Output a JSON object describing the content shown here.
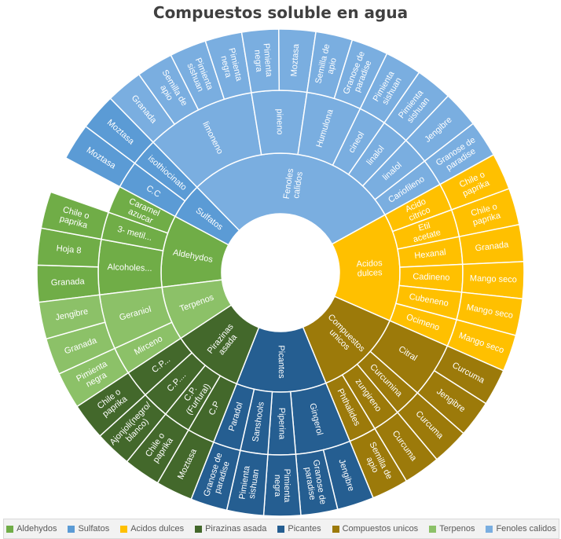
{
  "chart_data": {
    "type": "sunburst",
    "title": "Compuestos soluble en agua",
    "groups": [
      {
        "name": "Aldehydos",
        "color": "#70ad47",
        "children": [
          {
            "name": "Alcoholes...",
            "children": [
              {
                "name": "Granada"
              },
              {
                "name": "Hoja 8"
              }
            ]
          },
          {
            "name": "3- metil...",
            "children": [
              {
                "name": "Chile o paprika"
              }
            ]
          },
          {
            "name": "Caramel azucar",
            "children": []
          }
        ]
      },
      {
        "name": "Sulfatos",
        "color": "#5b9bd5",
        "children": [
          {
            "name": "C.C",
            "children": [
              {
                "name": "Moztasa"
              }
            ]
          },
          {
            "name": "isothiocinato",
            "children": [
              {
                "name": "Moztasa"
              }
            ]
          }
        ]
      },
      {
        "name": "Fenoles calidos",
        "color": "#7aaee0",
        "children": [
          {
            "name": "limoneno",
            "children": [
              {
                "name": "Granada"
              },
              {
                "name": "Semilla de apio"
              },
              {
                "name": "Pimienta sishuan"
              },
              {
                "name": "Pimienta negra"
              }
            ]
          },
          {
            "name": "pineno",
            "children": [
              {
                "name": "Pimienta negra"
              },
              {
                "name": "Moztasa"
              }
            ]
          },
          {
            "name": "Humulona",
            "children": [
              {
                "name": "Semilla de apio"
              },
              {
                "name": "Granose de paradise"
              }
            ]
          },
          {
            "name": "cineol",
            "children": [
              {
                "name": "Pimienta sishuan"
              }
            ]
          },
          {
            "name": "linalol",
            "children": [
              {
                "name": "Pimienta sishuan"
              }
            ]
          },
          {
            "name": "linalol",
            "children": [
              {
                "name": "Jengibre"
              }
            ]
          },
          {
            "name": "Cariofileno",
            "children": [
              {
                "name": "Granose de paradise"
              }
            ]
          }
        ]
      },
      {
        "name": "Acidos dulces",
        "color": "#ffc000",
        "children": [
          {
            "name": "Acido citrico",
            "children": [
              {
                "name": "Chile o paprika"
              }
            ]
          },
          {
            "name": "Etil acetate",
            "children": [
              {
                "name": "Chile o paprika"
              }
            ]
          },
          {
            "name": "Hexanal",
            "children": [
              {
                "name": "Granada"
              }
            ]
          },
          {
            "name": "Cadineno",
            "children": [
              {
                "name": "Mango seco"
              }
            ]
          },
          {
            "name": "Cubeneno",
            "children": [
              {
                "name": "Mango seco"
              }
            ]
          },
          {
            "name": "Ocimeno",
            "children": [
              {
                "name": "Mango seco"
              }
            ]
          }
        ]
      },
      {
        "name": "Compuestos unicos",
        "color": "#9c7a0a",
        "children": [
          {
            "name": "Citral",
            "children": [
              {
                "name": "Curcuma"
              },
              {
                "name": "Jengibre"
              }
            ]
          },
          {
            "name": "Curcumina",
            "children": [
              {
                "name": "Curcuma"
              }
            ]
          },
          {
            "name": "zungireno",
            "children": [
              {
                "name": "Curcuma"
              }
            ]
          },
          {
            "name": "Phthalides",
            "children": [
              {
                "name": "Semilla de apio"
              }
            ]
          }
        ]
      },
      {
        "name": "Picantes",
        "color": "#255e91",
        "children": [
          {
            "name": "Gingerol",
            "children": [
              {
                "name": "Jengibre"
              },
              {
                "name": "Granose de paradise"
              }
            ]
          },
          {
            "name": "Piperina",
            "children": [
              {
                "name": "Pimienta negra"
              }
            ]
          },
          {
            "name": "Sanshools",
            "children": [
              {
                "name": "Pimienta sishuan"
              }
            ]
          },
          {
            "name": "Paradol",
            "children": [
              {
                "name": "Granose de paradise"
              }
            ]
          }
        ]
      },
      {
        "name": "Pirazinas asada",
        "color": "#43682b",
        "children": [
          {
            "name": "C.P",
            "children": [
              {
                "name": "Moztasa"
              }
            ]
          },
          {
            "name": "C.P. (Furfural)",
            "children": [
              {
                "name": "Chile o paprika"
              }
            ]
          },
          {
            "name": "C.P....",
            "children": [
              {
                "name": "Ajonjoli(negro/ blanco)"
              }
            ]
          },
          {
            "name": "C.P...",
            "children": [
              {
                "name": "Chile o paprika"
              }
            ]
          }
        ]
      },
      {
        "name": "Terpenos",
        "color": "#8cc168",
        "children": [
          {
            "name": "Mirceno",
            "children": [
              {
                "name": "Pimienta negra"
              }
            ]
          },
          {
            "name": "Geraniol",
            "children": [
              {
                "name": "Granada"
              },
              {
                "name": "Jengibre"
              }
            ]
          }
        ]
      }
    ],
    "legend": [
      "Aldehydos",
      "Sulfatos",
      "Acidos dulces",
      "Pirazinas asada",
      "Picantes",
      "Compuestos unicos",
      "Terpenos",
      "Fenoles calidos"
    ],
    "legend_position": "bottom"
  }
}
